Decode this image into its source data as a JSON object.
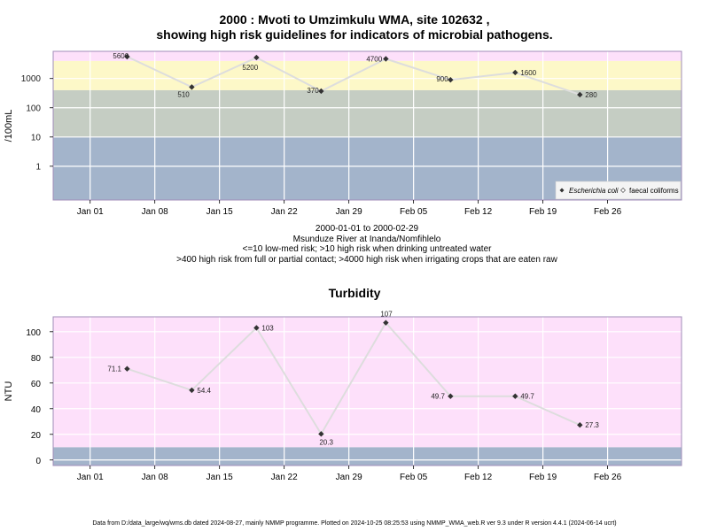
{
  "chart_data": [
    {
      "type": "scatter",
      "title_line1": "2000 : Mvoti to Umzimkulu WMA, site 102632 ,",
      "title_line2": "showing high risk guidelines for indicators of microbial pathogens.",
      "ylabel": "/100mL",
      "yscale": "log",
      "yticks": [
        {
          "v": 1,
          "l": "1"
        },
        {
          "v": 10,
          "l": "10"
        },
        {
          "v": 100,
          "l": "100"
        },
        {
          "v": 1000,
          "l": "1000"
        }
      ],
      "xlim": [
        "1999-12-28",
        "2000-03-05"
      ],
      "xticks": [
        {
          "d": "2000-01-01",
          "l": "Jan 01"
        },
        {
          "d": "2000-01-08",
          "l": "Jan 08"
        },
        {
          "d": "2000-01-15",
          "l": "Jan 15"
        },
        {
          "d": "2000-01-22",
          "l": "Jan 22"
        },
        {
          "d": "2000-01-29",
          "l": "Jan 29"
        },
        {
          "d": "2000-02-05",
          "l": "Feb 05"
        },
        {
          "d": "2000-02-12",
          "l": "Feb 12"
        },
        {
          "d": "2000-02-19",
          "l": "Feb 19"
        },
        {
          "d": "2000-02-26",
          "l": "Feb 26"
        }
      ],
      "bands": [
        {
          "from": 0.07,
          "to": 10,
          "color": "#a3b4cb"
        },
        {
          "from": 10,
          "to": 400,
          "color": "#c5cdc3"
        },
        {
          "from": 400,
          "to": 4000,
          "color": "#fdf8c8"
        },
        {
          "from": 4000,
          "to": 8500,
          "color": "#fde0fa"
        }
      ],
      "series": [
        {
          "name": "Escherichia coli",
          "x": [
            "2000-01-05",
            "2000-01-12",
            "2000-01-19",
            "2000-01-26",
            "2000-02-02",
            "2000-02-09",
            "2000-02-16",
            "2000-02-23"
          ],
          "values": [
            5600,
            510,
            5200,
            370,
            4700,
            900,
            1600,
            280
          ],
          "labels": [
            "5600",
            "510",
            "5200",
            "370",
            "4700",
            "900",
            "1600",
            "280"
          ]
        }
      ],
      "legend": {
        "position": "bottom-right",
        "entries": [
          "Escherichia coli",
          "faecal coliforms"
        ]
      },
      "grid": true
    },
    {
      "type": "scatter",
      "title": "Turbidity",
      "ylabel": "NTU",
      "yticks": [
        {
          "v": 0,
          "l": "0"
        },
        {
          "v": 20,
          "l": "20"
        },
        {
          "v": 40,
          "l": "40"
        },
        {
          "v": 60,
          "l": "60"
        },
        {
          "v": 80,
          "l": "80"
        },
        {
          "v": 100,
          "l": "100"
        }
      ],
      "ylim": [
        -4.3,
        111.6
      ],
      "xlim": [
        "1999-12-28",
        "2000-03-05"
      ],
      "xticks": [
        {
          "d": "2000-01-01",
          "l": "Jan 01"
        },
        {
          "d": "2000-01-08",
          "l": "Jan 08"
        },
        {
          "d": "2000-01-15",
          "l": "Jan 15"
        },
        {
          "d": "2000-01-22",
          "l": "Jan 22"
        },
        {
          "d": "2000-01-29",
          "l": "Jan 29"
        },
        {
          "d": "2000-02-05",
          "l": "Feb 05"
        },
        {
          "d": "2000-02-12",
          "l": "Feb 12"
        },
        {
          "d": "2000-02-19",
          "l": "Feb 19"
        },
        {
          "d": "2000-02-26",
          "l": "Feb 26"
        }
      ],
      "bands": [
        {
          "from": -4.3,
          "to": 10,
          "color": "#a3b4cb"
        },
        {
          "from": 10,
          "to": 111.6,
          "color": "#fde0fa"
        }
      ],
      "series": [
        {
          "name": "",
          "x": [
            "2000-01-05",
            "2000-01-12",
            "2000-01-19",
            "2000-01-26",
            "2000-02-02",
            "2000-02-09",
            "2000-02-16",
            "2000-02-23"
          ],
          "values": [
            71.1,
            54.4,
            103,
            20.3,
            107,
            49.7,
            49.7,
            27.3
          ],
          "labels": [
            "71.1",
            "54.4",
            "103",
            "20.3",
            "107",
            "49.7",
            "49.7",
            "27.3"
          ]
        }
      ],
      "grid": true
    }
  ],
  "caption": {
    "line1": "2000-01-01 to 2000-02-29",
    "line2": "Msunduze River at Inanda/Nomfihlelo",
    "line3": "<=10 low-med risk; >10 high risk when drinking untreated water",
    "line4": ">400 high risk from full or partial contact; >4000 high risk when irrigating crops that are eaten raw"
  },
  "footer": "Data from D:/data_large/wq/wms.db dated 2024-08-27, mainly NMMP programme. Plotted on 2024-10-25 08:25:53 using NMMP_WMA_web.R ver 9.3 under R version 4.4.1 (2024-06-14 ucrt)",
  "colors": {
    "frame": "#a08cb8",
    "grid": "#ffffff",
    "line": "#dddddd",
    "marker": "#333333"
  }
}
